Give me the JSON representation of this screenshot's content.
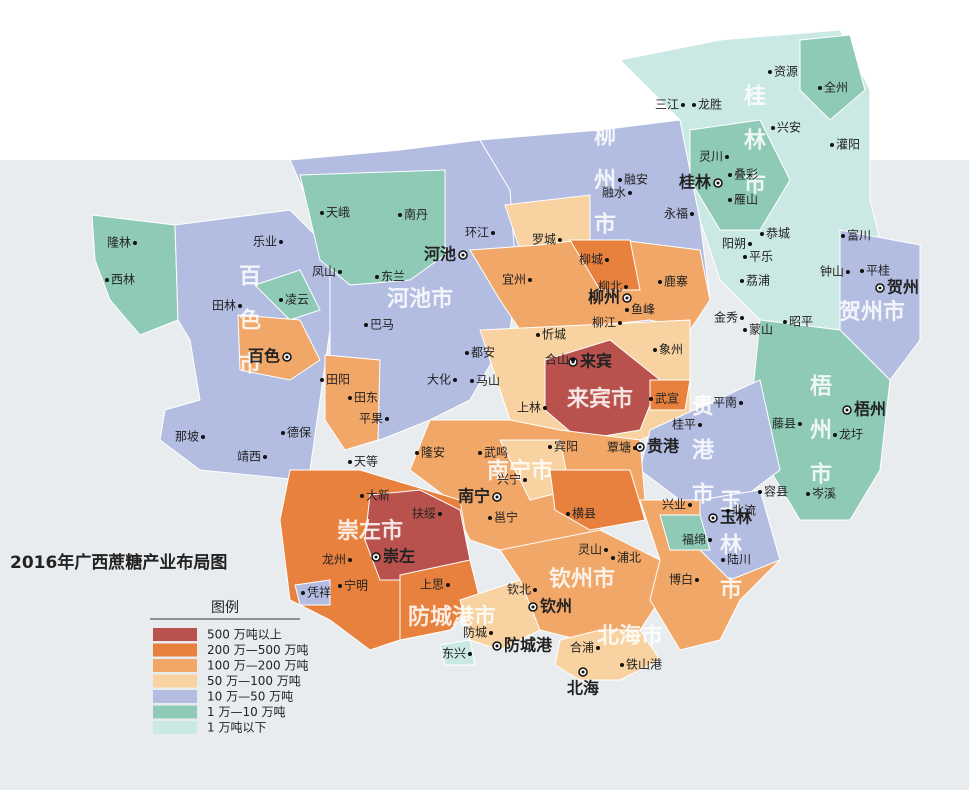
{
  "title": "2016年广西蔗糖产业布局图",
  "legend": {
    "title": "图例",
    "items": [
      {
        "label": "500 万吨以上",
        "color": "#b9514c"
      },
      {
        "label": "200 万—500 万吨",
        "color": "#e7813d"
      },
      {
        "label": "100 万—200 万吨",
        "color": "#f1a767"
      },
      {
        "label": "50 万—100 万吨",
        "color": "#f8d2a0"
      },
      {
        "label": "10 万—50 万吨",
        "color": "#b3bde2"
      },
      {
        "label": "1 万—10 万吨",
        "color": "#8fcab6"
      },
      {
        "label": "1 万吨以下",
        "color": "#cbe9e4"
      }
    ]
  },
  "regions": [
    "百色市",
    "河池市",
    "柳州市",
    "桂林市",
    "贺州市",
    "梧州市",
    "来宾市",
    "贵港市",
    "玉林市",
    "南宁市",
    "崇左市",
    "钦州市",
    "防城港市",
    "北海市"
  ],
  "cities": [
    "河池",
    "柳州",
    "桂林",
    "贺州",
    "梧州",
    "来宾",
    "贵港",
    "玉林",
    "南宁",
    "崇左",
    "百色",
    "钦州",
    "防城港",
    "北海"
  ],
  "counties": [
    "资源",
    "全州",
    "三江",
    "龙胜",
    "兴安",
    "灌阳",
    "灵川",
    "叠彩",
    "融安",
    "融水",
    "雁山",
    "永福",
    "恭城",
    "富川",
    "阳朔",
    "平乐",
    "天峨",
    "南丹",
    "隆林",
    "乐业",
    "环江",
    "罗城",
    "凤山",
    "东兰",
    "西林",
    "田林",
    "凌云",
    "巴马",
    "宜州",
    "柳城",
    "鹿寨",
    "柳北",
    "鱼峰",
    "柳江",
    "荔浦",
    "钟山",
    "平桂",
    "金秀",
    "蒙山",
    "昭平",
    "忻城",
    "象州",
    "都安",
    "合山",
    "大化",
    "马山",
    "田阳",
    "田东",
    "上林",
    "武宣",
    "平南",
    "藤县",
    "龙圩",
    "那坡",
    "德保",
    "平果",
    "桂平",
    "靖西",
    "隆安",
    "武鸣",
    "宾阳",
    "覃塘",
    "天等",
    "兴宁",
    "大新",
    "扶绥",
    "邕宁",
    "兴业",
    "北流",
    "容县",
    "岑溪",
    "横县",
    "福绵",
    "龙州",
    "灵山",
    "浦北",
    "陆川",
    "凭祥",
    "宁明",
    "上思",
    "博白",
    "钦北",
    "防城",
    "东兴",
    "合浦",
    "铁山港"
  ]
}
